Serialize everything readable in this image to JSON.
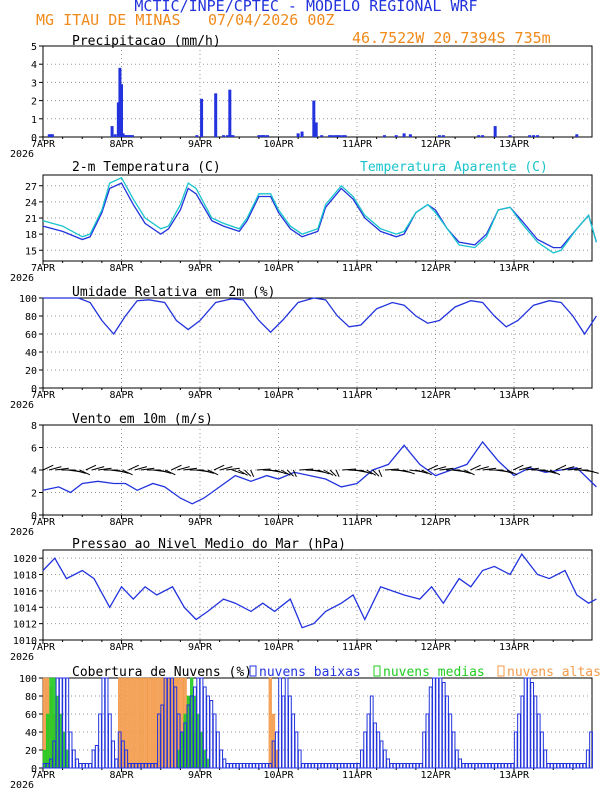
{
  "header": {
    "title": "MCTIC/INPE/CPTEC - MODELO REGIONAL WRF",
    "location": "MG ITAU DE MINAS",
    "run": "07/04/2026 00Z",
    "coords": "46.7522W 20.7394S 735m"
  },
  "colors": {
    "blue": "#2233dd",
    "cyan": "#19c4cc",
    "green": "#22cc22",
    "orange": "#f49a4a",
    "black": "#000000",
    "header_orange": "#f08a1a"
  },
  "x_ticks": [
    "7APR",
    "8APR",
    "9APR",
    "10APR",
    "11APR",
    "12APR",
    "13APR"
  ],
  "x_year": "2026",
  "chart_data": [
    {
      "type": "bar",
      "title": "Precipitacao (mm/h)",
      "ylim": [
        0,
        5
      ],
      "yticks": [
        0,
        1,
        2,
        3,
        4,
        5
      ],
      "x": [
        0.08,
        0.1,
        0.12,
        0.88,
        0.92,
        0.96,
        0.98,
        1.0,
        1.02,
        1.04,
        1.06,
        1.08,
        1.1,
        1.12,
        1.14,
        1.96,
        2.02,
        2.2,
        2.3,
        2.35,
        2.38,
        2.4,
        2.42,
        2.75,
        2.78,
        2.8,
        2.82,
        2.86,
        3.25,
        3.3,
        3.45,
        3.48,
        3.55,
        3.65,
        3.68,
        3.72,
        3.75,
        3.78,
        3.82,
        3.85,
        4.35,
        4.5,
        4.6,
        4.68,
        5.05,
        5.1,
        5.55,
        5.6,
        5.76,
        5.95,
        6.2,
        6.25,
        6.3,
        6.8
      ],
      "values": [
        0.15,
        0.15,
        0.15,
        0.6,
        0.15,
        1.9,
        3.8,
        2.9,
        0.2,
        0.1,
        0.1,
        0.1,
        0.1,
        0.1,
        0.1,
        0.1,
        2.1,
        2.4,
        0.1,
        0.1,
        2.6,
        0.1,
        0.1,
        0.1,
        0.1,
        0.1,
        0.1,
        0.1,
        0.2,
        0.3,
        2.0,
        0.8,
        0.1,
        0.1,
        0.1,
        0.1,
        0.1,
        0.1,
        0.1,
        0.1,
        0.1,
        0.1,
        0.2,
        0.15,
        0.1,
        0.1,
        0.1,
        0.1,
        0.6,
        0.1,
        0.1,
        0.1,
        0.1,
        0.15
      ]
    },
    {
      "type": "line",
      "title": "2-m Temperatura (C)",
      "legend": "Temperatura Aparente (C)",
      "ylim": [
        13,
        29
      ],
      "yticks": [
        15,
        18,
        21,
        24,
        27
      ],
      "x": [
        0,
        0.25,
        0.5,
        0.6,
        0.75,
        0.85,
        1.0,
        1.15,
        1.3,
        1.5,
        1.6,
        1.75,
        1.85,
        1.95,
        2.15,
        2.3,
        2.5,
        2.6,
        2.75,
        2.9,
        3.0,
        3.15,
        3.3,
        3.5,
        3.6,
        3.8,
        3.95,
        4.1,
        4.3,
        4.5,
        4.6,
        4.75,
        4.9,
        5.0,
        5.15,
        5.3,
        5.5,
        5.65,
        5.8,
        5.95,
        6.1,
        6.3,
        6.5,
        6.6,
        6.8,
        6.95,
        7.05
      ],
      "series": [
        {
          "name": "temp",
          "values": [
            19.5,
            18.5,
            17,
            17.5,
            22,
            26.5,
            27.5,
            23.5,
            20,
            18,
            19,
            22.5,
            26.5,
            25.5,
            20.5,
            19.5,
            18.5,
            20.5,
            25,
            25,
            22,
            19,
            17.5,
            18.5,
            23,
            26.5,
            24.5,
            21,
            18.5,
            17.5,
            18,
            22,
            23.5,
            22.5,
            19,
            16.5,
            16,
            18,
            22.5,
            23,
            20.5,
            17,
            15.5,
            15.5,
            19,
            21.5,
            16.5
          ]
        },
        {
          "name": "Temperatura Aparente (C)",
          "values": [
            20.5,
            19.5,
            17.5,
            18,
            22.5,
            27.5,
            28.5,
            24.5,
            21,
            19,
            19.5,
            23.5,
            27.5,
            26.5,
            21,
            20,
            19,
            21,
            25.5,
            25.5,
            22.5,
            19.5,
            18,
            19,
            23.5,
            27,
            25,
            21.5,
            19,
            18,
            18.5,
            22,
            23.5,
            22,
            19,
            16,
            15.5,
            17.5,
            22.5,
            23,
            20,
            16.5,
            14.5,
            15,
            19,
            21.5,
            16.5
          ]
        }
      ]
    },
    {
      "type": "line",
      "title": "Umidade Relativa em 2m (%)",
      "ylim": [
        0,
        100
      ],
      "yticks": [
        0,
        20,
        40,
        60,
        80,
        100
      ],
      "x": [
        0,
        0.2,
        0.45,
        0.6,
        0.75,
        0.9,
        1.05,
        1.2,
        1.35,
        1.55,
        1.7,
        1.85,
        2.0,
        2.2,
        2.4,
        2.55,
        2.75,
        2.9,
        3.05,
        3.25,
        3.45,
        3.6,
        3.75,
        3.9,
        4.05,
        4.25,
        4.45,
        4.6,
        4.75,
        4.9,
        5.05,
        5.25,
        5.45,
        5.6,
        5.75,
        5.9,
        6.05,
        6.25,
        6.45,
        6.6,
        6.75,
        6.9,
        7.05
      ],
      "series": [
        {
          "name": "rh",
          "values": [
            100,
            100,
            100,
            95,
            75,
            60,
            80,
            97,
            98,
            95,
            75,
            65,
            75,
            95,
            99,
            98,
            75,
            62,
            75,
            95,
            100,
            98,
            80,
            68,
            70,
            88,
            95,
            92,
            80,
            72,
            75,
            90,
            97,
            95,
            80,
            68,
            75,
            92,
            97,
            95,
            80,
            60,
            80
          ]
        }
      ]
    },
    {
      "type": "line",
      "title": "Vento em 10m (m/s)",
      "ylim": [
        0,
        8
      ],
      "yticks": [
        0,
        2,
        4,
        6,
        8
      ],
      "x": [
        0,
        0.2,
        0.35,
        0.5,
        0.7,
        0.9,
        1.05,
        1.2,
        1.4,
        1.55,
        1.75,
        1.9,
        2.05,
        2.25,
        2.45,
        2.65,
        2.85,
        3.0,
        3.2,
        3.4,
        3.6,
        3.8,
        4.0,
        4.2,
        4.4,
        4.6,
        4.8,
        5.0,
        5.2,
        5.4,
        5.6,
        5.8,
        6.0,
        6.2,
        6.4,
        6.6,
        6.8,
        7.05
      ],
      "series": [
        {
          "name": "speed",
          "values": [
            2.2,
            2.5,
            2.0,
            2.8,
            3.0,
            2.8,
            2.8,
            2.2,
            2.8,
            2.5,
            1.5,
            1.0,
            1.5,
            2.5,
            3.5,
            3.0,
            3.5,
            3.2,
            3.8,
            3.5,
            3.2,
            2.5,
            2.8,
            4.0,
            4.5,
            6.2,
            4.5,
            3.5,
            4.0,
            4.5,
            6.5,
            4.8,
            3.5,
            4.2,
            3.8,
            4.0,
            4.2,
            2.5
          ]
        }
      ],
      "arrows": {
        "y": 4,
        "count": 90
      }
    },
    {
      "type": "line",
      "title": "Pressao ao Nivel Medio do Mar (hPa)",
      "ylim": [
        1010,
        1021
      ],
      "yticks": [
        1010,
        1012,
        1014,
        1016,
        1018,
        1020
      ],
      "x": [
        0,
        0.15,
        0.3,
        0.5,
        0.65,
        0.85,
        1.0,
        1.15,
        1.3,
        1.45,
        1.65,
        1.8,
        1.95,
        2.1,
        2.3,
        2.45,
        2.65,
        2.8,
        2.95,
        3.15,
        3.3,
        3.45,
        3.6,
        3.8,
        3.95,
        4.1,
        4.3,
        4.45,
        4.6,
        4.8,
        4.95,
        5.1,
        5.3,
        5.45,
        5.6,
        5.75,
        5.95,
        6.1,
        6.3,
        6.45,
        6.65,
        6.8,
        6.95,
        7.05
      ],
      "series": [
        {
          "name": "mslp",
          "values": [
            1018.5,
            1020,
            1017.5,
            1018.5,
            1017.5,
            1014,
            1016.5,
            1015,
            1016.5,
            1015.5,
            1016.5,
            1014,
            1012.5,
            1013.5,
            1015,
            1014.5,
            1013.5,
            1014.5,
            1013.5,
            1015,
            1011.5,
            1012,
            1013.5,
            1014.5,
            1015.5,
            1012.5,
            1016.5,
            1016,
            1015.5,
            1015,
            1016.5,
            1014.5,
            1017.5,
            1016.5,
            1018.5,
            1019,
            1018,
            1020.5,
            1018,
            1017.5,
            1018.5,
            1015.5,
            1014.5,
            1015
          ]
        }
      ]
    },
    {
      "type": "bar",
      "title": "Cobertura de Nuvens (%)",
      "ylim": [
        0,
        100
      ],
      "yticks": [
        0,
        20,
        40,
        60,
        80,
        100
      ],
      "legend": [
        "nuvens baixas",
        "nuvens medias",
        "nuvens altas"
      ],
      "series": [
        {
          "name": "nuvens baixas",
          "x0": 0,
          "dx": 0.0417,
          "values": [
            5,
            5,
            10,
            30,
            100,
            100,
            100,
            100,
            40,
            20,
            10,
            5,
            5,
            5,
            5,
            20,
            25,
            60,
            100,
            100,
            60,
            30,
            10,
            40,
            30,
            20,
            5,
            5,
            5,
            5,
            5,
            5,
            5,
            5,
            5,
            60,
            70,
            100,
            100,
            100,
            90,
            60,
            40,
            50,
            70,
            80,
            90,
            100,
            100,
            90,
            80,
            75,
            60,
            40,
            20,
            10,
            5,
            5,
            5,
            5,
            5,
            5,
            5,
            5,
            5,
            5,
            5,
            5,
            5,
            5,
            30,
            40,
            100,
            80,
            100,
            80,
            60,
            40,
            20,
            5,
            5,
            5,
            5,
            5,
            5,
            5,
            5,
            5,
            5,
            5,
            5,
            5,
            5,
            5,
            5,
            5,
            5,
            20,
            40,
            60,
            80,
            50,
            40,
            30,
            20,
            10,
            5,
            5,
            5,
            5,
            5,
            5,
            5,
            5,
            5,
            5,
            40,
            60,
            90,
            100,
            100,
            100,
            95,
            80,
            60,
            40,
            20,
            10,
            5,
            5,
            5,
            5,
            5,
            5,
            5,
            5,
            5,
            5,
            5,
            5,
            5,
            5,
            5,
            5,
            40,
            60,
            80,
            100,
            100,
            95,
            80,
            60,
            40,
            20,
            5,
            5,
            5,
            5,
            5,
            5,
            5,
            5,
            5,
            5,
            5,
            5,
            20,
            40,
            60,
            80,
            100,
            90,
            60,
            40,
            20,
            5,
            5,
            5,
            5,
            5,
            5
          ]
        },
        {
          "name": "nuvens medias",
          "x0": 0,
          "dx": 0.0417,
          "values": [
            20,
            60,
            100,
            100,
            80,
            60,
            40,
            20,
            5,
            5,
            5,
            5,
            5,
            5,
            5,
            5,
            5,
            5,
            5,
            5,
            5,
            5,
            5,
            5,
            5,
            5,
            5,
            5,
            5,
            5,
            5,
            5,
            5,
            5,
            5,
            5,
            5,
            5,
            5,
            5,
            5,
            20,
            40,
            60,
            80,
            100,
            80,
            60,
            40,
            20,
            10,
            5,
            5,
            5,
            5,
            5,
            5,
            5,
            5,
            5,
            5,
            5,
            5,
            5,
            5,
            5,
            5,
            5,
            5,
            5,
            5,
            5,
            5,
            5,
            5,
            5,
            5,
            5,
            5,
            5,
            5,
            5,
            5,
            5,
            5,
            5,
            5,
            5,
            5,
            5,
            5,
            5,
            5,
            5,
            5,
            5,
            5,
            5,
            5,
            5,
            5,
            5,
            5,
            5,
            5,
            5,
            5,
            5,
            5,
            5,
            5,
            5,
            5,
            5,
            5,
            5,
            5,
            5,
            5,
            5,
            5,
            5,
            5,
            5,
            5,
            5,
            5,
            5,
            5,
            5,
            5,
            5,
            5,
            5,
            5,
            5,
            5,
            5,
            5,
            5,
            5,
            5,
            5,
            5,
            5,
            5,
            5,
            5,
            5,
            5,
            5,
            5,
            5,
            5,
            5,
            5,
            5,
            5,
            5,
            5,
            5,
            5,
            5,
            5,
            5,
            5,
            5,
            5,
            5,
            5,
            5,
            5,
            5,
            5
          ]
        },
        {
          "name": "nuvens altas",
          "x0": 0,
          "dx": 0.0417,
          "values": [
            100,
            100,
            90,
            60,
            20,
            5,
            5,
            5,
            5,
            5,
            5,
            5,
            5,
            5,
            5,
            5,
            5,
            5,
            5,
            5,
            5,
            5,
            5,
            100,
            100,
            100,
            100,
            100,
            100,
            100,
            100,
            100,
            100,
            100,
            100,
            100,
            100,
            100,
            100,
            100,
            100,
            100,
            100,
            100,
            80,
            60,
            40,
            20,
            5,
            5,
            5,
            5,
            5,
            5,
            5,
            5,
            5,
            5,
            5,
            5,
            5,
            5,
            5,
            5,
            5,
            5,
            5,
            5,
            5,
            100,
            60,
            20,
            5,
            5,
            5,
            5,
            5,
            5,
            5,
            5,
            5,
            5,
            5,
            5,
            5,
            5,
            5,
            5,
            5,
            5,
            5,
            5,
            5,
            5,
            5,
            5,
            5,
            5,
            5,
            5,
            5,
            5,
            5,
            5,
            5,
            5,
            5,
            5,
            5,
            5,
            5,
            5,
            5,
            5,
            5,
            5,
            5,
            5,
            5,
            5,
            5,
            5,
            5,
            5,
            5,
            5,
            5,
            5,
            5,
            5,
            5,
            5,
            5,
            5,
            5,
            5,
            5,
            5,
            5,
            5,
            5,
            5,
            5,
            5,
            5,
            5,
            5,
            5,
            5,
            5,
            5,
            5,
            5,
            5,
            5,
            5,
            5,
            5,
            5,
            5,
            5,
            5,
            5,
            5,
            5,
            5,
            5,
            5,
            5,
            5,
            5,
            60,
            100,
            100,
            100,
            100,
            100
          ]
        }
      ]
    }
  ]
}
